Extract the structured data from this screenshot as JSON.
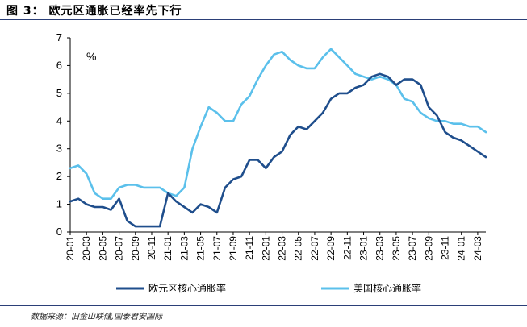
{
  "header": {
    "figure_title": "图 3：  欧元区通胀已经率先下行"
  },
  "footer": {
    "source": "数据来源：旧金山联储,国泰君安国际"
  },
  "chart_data": {
    "type": "line",
    "unit_label": "%",
    "ylim": [
      0,
      7
    ],
    "yticks": [
      0,
      1,
      2,
      3,
      4,
      5,
      6,
      7
    ],
    "grid": false,
    "legend_position": "bottom",
    "x_tick_labels": [
      "20-01",
      "20-03",
      "20-05",
      "20-07",
      "20-09",
      "20-11",
      "21-01",
      "21-03",
      "21-05",
      "21-07",
      "21-09",
      "21-11",
      "22-01",
      "22-03",
      "22-05",
      "22-07",
      "22-09",
      "22-11",
      "23-01",
      "23-03",
      "23-05",
      "23-07",
      "23-09",
      "23-11",
      "24-01",
      "24-03"
    ],
    "x": [
      "20-01",
      "20-02",
      "20-03",
      "20-04",
      "20-05",
      "20-06",
      "20-07",
      "20-08",
      "20-09",
      "20-10",
      "20-11",
      "20-12",
      "21-01",
      "21-02",
      "21-03",
      "21-04",
      "21-05",
      "21-06",
      "21-07",
      "21-08",
      "21-09",
      "21-10",
      "21-11",
      "21-12",
      "22-01",
      "22-02",
      "22-03",
      "22-04",
      "22-05",
      "22-06",
      "22-07",
      "22-08",
      "22-09",
      "22-10",
      "22-11",
      "22-12",
      "23-01",
      "23-02",
      "23-03",
      "23-04",
      "23-05",
      "23-06",
      "23-07",
      "23-08",
      "23-09",
      "23-10",
      "23-11",
      "23-12",
      "24-01",
      "24-02",
      "24-03",
      "24-04"
    ],
    "series": [
      {
        "name": "欧元区核心通胀率",
        "color": "#1f4e8c",
        "values": [
          1.1,
          1.2,
          1.0,
          0.9,
          0.9,
          0.8,
          1.2,
          0.4,
          0.2,
          0.2,
          0.2,
          0.2,
          1.4,
          1.1,
          0.9,
          0.7,
          1.0,
          0.9,
          0.7,
          1.6,
          1.9,
          2.0,
          2.6,
          2.6,
          2.3,
          2.7,
          2.9,
          3.5,
          3.8,
          3.7,
          4.0,
          4.3,
          4.8,
          5.0,
          5.0,
          5.2,
          5.3,
          5.6,
          5.7,
          5.6,
          5.3,
          5.5,
          5.5,
          5.3,
          4.5,
          4.2,
          3.6,
          3.4,
          3.3,
          3.1,
          2.9,
          2.7
        ]
      },
      {
        "name": "美国核心通胀率",
        "color": "#5bc0eb",
        "values": [
          2.3,
          2.4,
          2.1,
          1.4,
          1.2,
          1.2,
          1.6,
          1.7,
          1.7,
          1.6,
          1.6,
          1.6,
          1.4,
          1.3,
          1.6,
          3.0,
          3.8,
          4.5,
          4.3,
          4.0,
          4.0,
          4.6,
          4.9,
          5.5,
          6.0,
          6.4,
          6.5,
          6.2,
          6.0,
          5.9,
          5.9,
          6.3,
          6.6,
          6.3,
          6.0,
          5.7,
          5.6,
          5.5,
          5.6,
          5.5,
          5.3,
          4.8,
          4.7,
          4.3,
          4.1,
          4.0,
          4.0,
          3.9,
          3.9,
          3.8,
          3.8,
          3.6
        ]
      }
    ]
  }
}
